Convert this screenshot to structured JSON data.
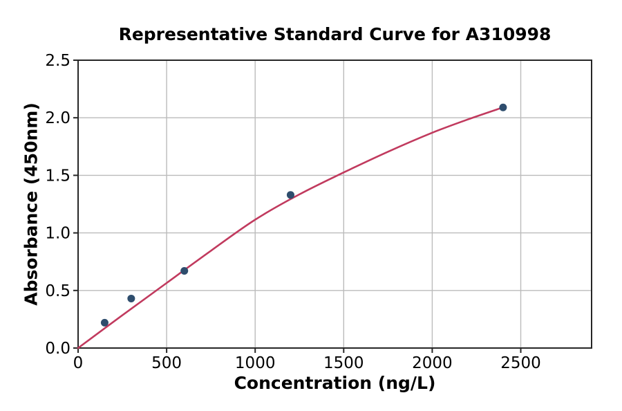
{
  "chart_data": {
    "type": "scatter",
    "title": "Representative Standard Curve for A310998",
    "xlabel": "Concentration (ng/L)",
    "ylabel": "Absorbance (450nm)",
    "xlim": [
      0,
      2900
    ],
    "ylim": [
      0,
      2.5
    ],
    "x_ticks": [
      "0",
      "500",
      "1000",
      "1500",
      "2000",
      "2500"
    ],
    "x_tick_values": [
      0,
      500,
      1000,
      1500,
      2000,
      2500
    ],
    "y_ticks": [
      "0.0",
      "0.5",
      "1.0",
      "1.5",
      "2.0",
      "2.5"
    ],
    "y_tick_values": [
      0,
      0.5,
      1.0,
      1.5,
      2.0,
      2.5
    ],
    "grid": true,
    "legend": false,
    "points": [
      {
        "x": 150,
        "y": 0.22
      },
      {
        "x": 300,
        "y": 0.43
      },
      {
        "x": 600,
        "y": 0.67
      },
      {
        "x": 1200,
        "y": 1.33
      },
      {
        "x": 2400,
        "y": 2.09
      }
    ],
    "fit_curve": {
      "note": "smooth saturating fit starting at origin, ending at last data point",
      "x": [
        0,
        250,
        500,
        750,
        1000,
        1250,
        1500,
        1750,
        2000,
        2200,
        2400
      ],
      "y": [
        0,
        0.285,
        0.565,
        0.845,
        1.115,
        1.335,
        1.525,
        1.705,
        1.87,
        1.985,
        2.09
      ]
    },
    "colors": {
      "marker": "#2e4d6d",
      "line": "#c13a5e",
      "grid": "#bbbbbb",
      "spine": "#262626",
      "text": "#000000",
      "background": "#ffffff"
    }
  }
}
